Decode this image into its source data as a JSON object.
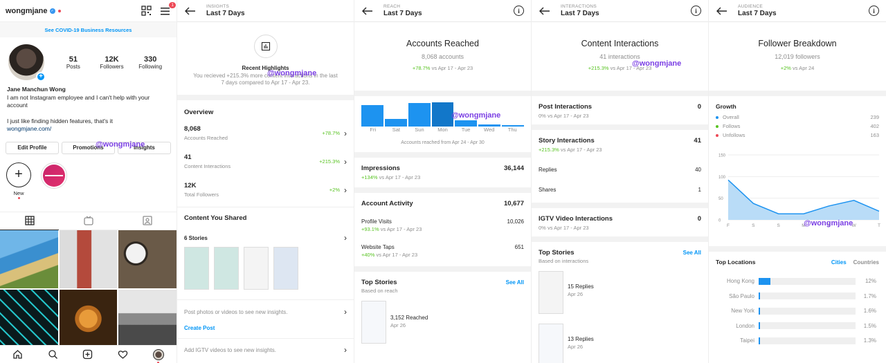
{
  "profile": {
    "username": "wongmjane",
    "notif_count": "1",
    "covid_link": "See COVID-19 Business Resources",
    "stats": [
      {
        "value": "51",
        "label": "Posts"
      },
      {
        "value": "12K",
        "label": "Followers"
      },
      {
        "value": "330",
        "label": "Following"
      }
    ],
    "name": "Jane Manchun Wong",
    "bio1": "I am not Instagram employee and I can't help with your account",
    "bio2": "I just like finding hidden features, that's it",
    "link": "wongmjane.com/",
    "buttons": [
      "Edit Profile",
      "Promotions",
      "Insights"
    ],
    "new_label": "New",
    "watermark": "@wongmjane"
  },
  "insights": {
    "small_title": "INSIGHTS",
    "title": "Last 7 Days",
    "highlights_title": "Recent Highlights",
    "highlights_text": "You recieved +215.3% more content interactions in the last 7 days compared to Apr 17 - Apr 23.",
    "overview_title": "Overview",
    "metrics": [
      {
        "value": "8,068",
        "label": "Accounts Reached",
        "change": "+78.7%"
      },
      {
        "value": "41",
        "label": "Content Interactions",
        "change": "+215.3%"
      },
      {
        "value": "12K",
        "label": "Total Followers",
        "change": "+2%"
      }
    ],
    "content_shared_title": "Content You Shared",
    "stories_label": "6 Stories",
    "post_hint": "Post photos or videos to see new insights.",
    "create_post": "Create Post",
    "igtv_hint": "Add IGTV videos to see new insights."
  },
  "reach": {
    "small_title": "REACH",
    "title": "Last 7 Days",
    "heading": "Accounts Reached",
    "accounts": "8,068 accounts",
    "change": "+78.7%",
    "compare": "vs Apr 17 - Apr 23",
    "days": [
      "Fri",
      "Sat",
      "Sun",
      "Mon",
      "Tue",
      "Wed",
      "Thu"
    ],
    "bars": [
      0.85,
      0.3,
      0.95,
      0.98,
      0.25,
      0.08,
      0.06
    ],
    "chart_caption": "Accounts reached from Apr 24 - Apr 30",
    "impressions_label": "Impressions",
    "impressions_value": "36,144",
    "impressions_change": "+134%",
    "activity_label": "Account Activity",
    "activity_value": "10,677",
    "profile_visits_label": "Profile Visits",
    "profile_visits_value": "10,026",
    "profile_visits_change": "+93.1%",
    "website_taps_label": "Website Taps",
    "website_taps_value": "651",
    "website_taps_change": "+40%",
    "top_stories_title": "Top Stories",
    "top_stories_sub": "Based on reach",
    "see_all": "See All",
    "story_reached": "3,152 Reached",
    "story_date": "Apr 26"
  },
  "interactions": {
    "small_title": "INTERACTIONS",
    "title": "Last 7 Days",
    "heading": "Content Interactions",
    "count": "41 interactions",
    "change": "+215.3%",
    "compare": "vs Apr 17 - Apr 23",
    "post_label": "Post Interactions",
    "post_value": "0",
    "post_change": "0%",
    "story_label": "Story Interactions",
    "story_value": "41",
    "story_change": "+215.3%",
    "replies_label": "Replies",
    "replies_value": "40",
    "shares_label": "Shares",
    "shares_value": "1",
    "igtv_label": "IGTV Video Interactions",
    "igtv_value": "0",
    "igtv_change": "0%",
    "top_stories_title": "Top Stories",
    "top_stories_sub": "Based on interactions",
    "see_all": "See All",
    "story1_replies": "15 Replies",
    "story1_date": "Apr 26",
    "story2_replies": "13 Replies",
    "story2_date": "Apr 26"
  },
  "audience": {
    "small_title": "AUDIENCE",
    "title": "Last 7 Days",
    "heading": "Follower Breakdown",
    "followers": "12,019 followers",
    "change": "+2%",
    "compare": "vs Apr 24",
    "growth_title": "Growth",
    "growth": [
      {
        "label": "Overall",
        "value": "239",
        "color": "#1d93f0"
      },
      {
        "label": "Follows",
        "value": "402",
        "color": "#58c322"
      },
      {
        "label": "Unfollows",
        "value": "163",
        "color": "#ed4956"
      }
    ],
    "top_locations_title": "Top Locations",
    "tab_cities": "Cities",
    "tab_countries": "Countries",
    "locations": [
      {
        "name": "Hong Kong",
        "pct": "12%",
        "share": 0.12
      },
      {
        "name": "São Paulo",
        "pct": "1.7%",
        "share": 0.017
      },
      {
        "name": "New York",
        "pct": "1.6%",
        "share": 0.016
      },
      {
        "name": "London",
        "pct": "1.5%",
        "share": 0.015
      },
      {
        "name": "Taipei",
        "pct": "1.3%",
        "share": 0.013
      }
    ]
  },
  "chart_data": {
    "type": "area",
    "categories": [
      "F",
      "S",
      "S",
      "M",
      "T",
      "W",
      "T"
    ],
    "values": [
      92,
      38,
      14,
      14,
      32,
      45,
      20
    ],
    "yticks": [
      "150",
      "100",
      "50",
      "0"
    ],
    "ylim": [
      0,
      150
    ]
  }
}
